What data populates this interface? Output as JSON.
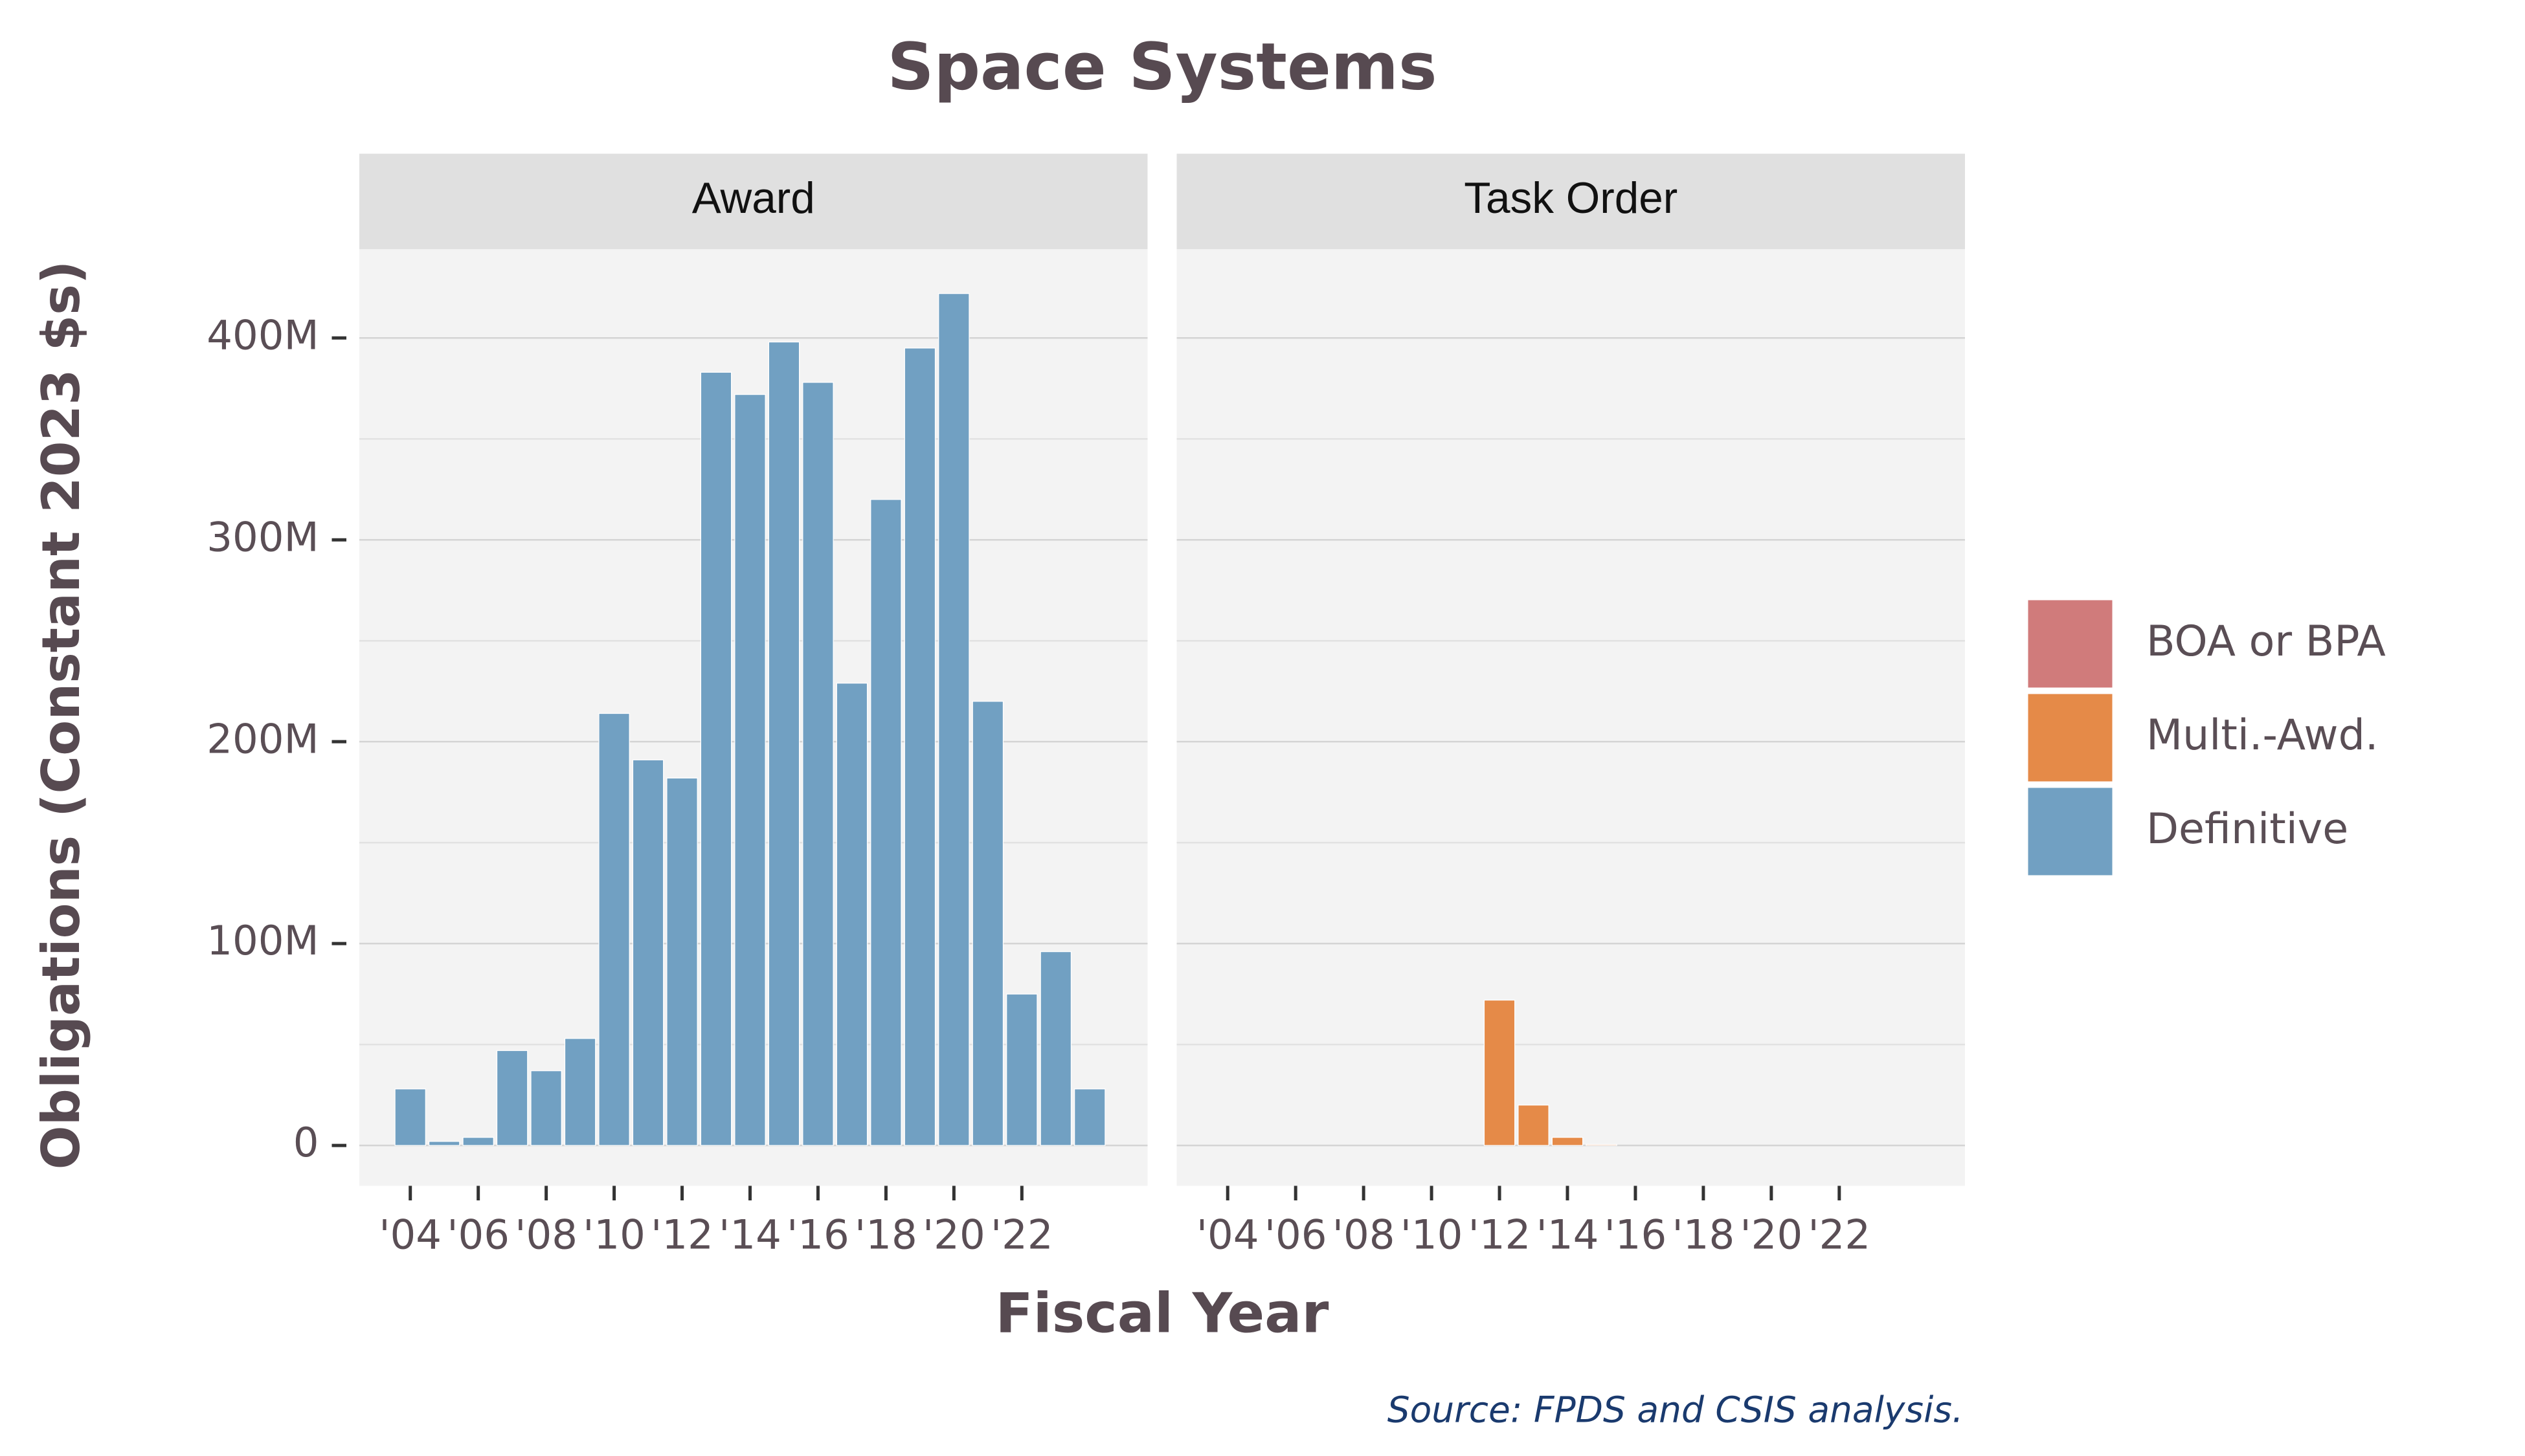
{
  "chart_data": {
    "type": "bar",
    "title": "Space Systems",
    "x_label": "Fiscal Year",
    "y_label": "Obligations (Constant 2023 $s)",
    "source": "Source: FPDS and CSIS analysis.",
    "panels": [
      "Award",
      "Task Order"
    ],
    "x": [
      2004,
      2005,
      2006,
      2007,
      2008,
      2009,
      2010,
      2011,
      2012,
      2013,
      2014,
      2015,
      2016,
      2017,
      2018,
      2019,
      2020,
      2021,
      2022,
      2023,
      2024
    ],
    "xlim": [
      2002.5,
      2025.7
    ],
    "xticks": [
      {
        "value": 2004,
        "label": "'04"
      },
      {
        "value": 2006,
        "label": "'06"
      },
      {
        "value": 2008,
        "label": "'08"
      },
      {
        "value": 2010,
        "label": "'10"
      },
      {
        "value": 2012,
        "label": "'12"
      },
      {
        "value": 2014,
        "label": "'14"
      },
      {
        "value": 2016,
        "label": "'16"
      },
      {
        "value": 2018,
        "label": "'18"
      },
      {
        "value": 2020,
        "label": "'20"
      },
      {
        "value": 2022,
        "label": "'22"
      }
    ],
    "ylim": [
      -20000000,
      444000000
    ],
    "yticks": [
      0,
      {
        "value": 100000000,
        "label": "100M"
      },
      {
        "value": 200000000,
        "label": "200M"
      },
      {
        "value": 300000000,
        "label": "300M"
      },
      {
        "value": 400000000,
        "label": "400M"
      }
    ],
    "minor_grid": [
      50000000,
      150000000,
      250000000,
      350000000
    ],
    "grid": true,
    "stacked": true,
    "legend_position": "right",
    "series": [
      {
        "name": "BOA or BPA",
        "color": "#d07b7b",
        "values": [
          [
            null,
            null,
            null,
            null,
            null,
            null,
            null,
            null,
            null,
            null,
            null,
            null,
            null,
            null,
            null,
            null,
            null,
            null,
            null,
            null,
            null
          ],
          [
            null,
            null,
            null,
            null,
            null,
            null,
            null,
            null,
            null,
            null,
            null,
            null,
            null,
            null,
            null,
            null,
            null,
            null,
            null,
            null,
            null
          ]
        ]
      },
      {
        "name": "Multi.-Awd.",
        "color": "#e58a48",
        "values": [
          [
            null,
            null,
            null,
            null,
            null,
            null,
            null,
            null,
            null,
            null,
            null,
            null,
            null,
            null,
            null,
            null,
            null,
            null,
            null,
            null,
            null
          ],
          [
            null,
            null,
            null,
            null,
            null,
            null,
            null,
            null,
            72000000,
            20000000,
            4000000,
            500000,
            null,
            null,
            null,
            null,
            null,
            null,
            null,
            null,
            null
          ]
        ]
      },
      {
        "name": "Definitive",
        "color": "#71a0c2",
        "values": [
          [
            28000000,
            2000000,
            4000000,
            47000000,
            37000000,
            53000000,
            214000000,
            191000000,
            182000000,
            383000000,
            372000000,
            398000000,
            378000000,
            229000000,
            320000000,
            395000000,
            422000000,
            220000000,
            75000000,
            96000000,
            28000000
          ],
          [
            null,
            null,
            null,
            null,
            null,
            null,
            null,
            null,
            null,
            null,
            null,
            null,
            null,
            null,
            null,
            null,
            null,
            null,
            null,
            null,
            null
          ]
        ]
      }
    ]
  }
}
